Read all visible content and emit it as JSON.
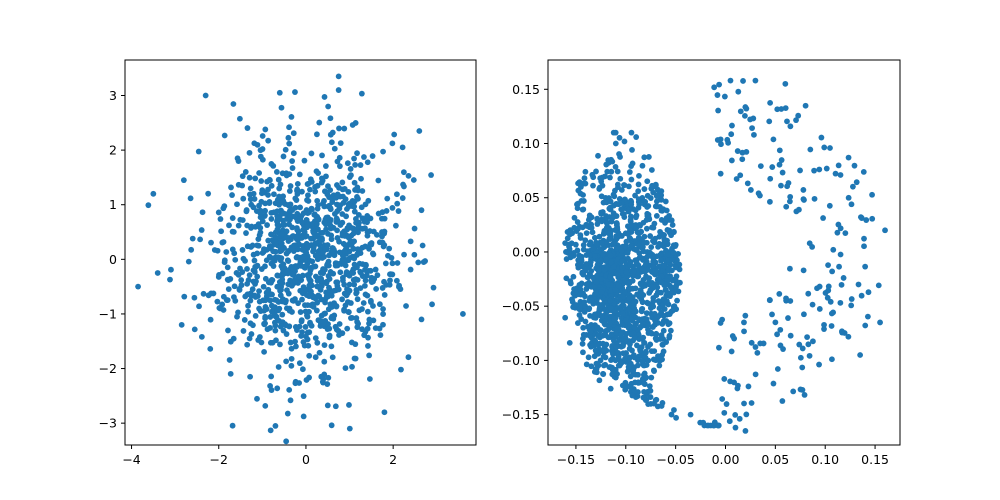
{
  "chart_data": [
    {
      "type": "scatter",
      "title": "",
      "xlabel": "",
      "ylabel": "",
      "xlim": [
        -4.15,
        3.9
      ],
      "ylim": [
        -3.4,
        3.65
      ],
      "xticks": [
        -4,
        -2,
        0,
        2
      ],
      "yticks": [
        -3,
        -2,
        -1,
        0,
        1,
        2,
        3
      ],
      "xtick_labels": [
        "−4",
        "−2",
        "0",
        "2"
      ],
      "ytick_labels": [
        "−3",
        "−2",
        "−1",
        "0",
        "1",
        "2",
        "3"
      ],
      "grid": false,
      "legend": "none",
      "color": "#1f77b4",
      "series": [
        {
          "distribution": "standard bivariate normal sample",
          "n_approx": 1200,
          "x_outliers": [
            -3.85,
            -3.5,
            -3.4,
            3.6
          ],
          "y_outliers": [
            -0.5,
            1.2,
            -0.25,
            -1.0
          ],
          "notable_points": [
            {
              "x": -2.3,
              "y": 3.0
            },
            {
              "x": -0.6,
              "y": 3.05
            },
            {
              "x": 0.75,
              "y": 3.35
            },
            {
              "x": 0.75,
              "y": 3.1
            },
            {
              "x": -0.7,
              "y": -3.05
            },
            {
              "x": 1.8,
              "y": -2.8
            },
            {
              "x": 2.6,
              "y": 2.35
            },
            {
              "x": 2.65,
              "y": 0.9
            },
            {
              "x": 2.7,
              "y": -0.05
            },
            {
              "x": 2.65,
              "y": -1.1
            },
            {
              "x": -2.85,
              "y": -1.2
            },
            {
              "x": -2.8,
              "y": 1.45
            }
          ]
        }
      ]
    },
    {
      "type": "scatter",
      "title": "",
      "xlabel": "",
      "ylabel": "",
      "xlim": [
        -0.178,
        0.175
      ],
      "ylim": [
        -0.178,
        0.177
      ],
      "xticks": [
        -0.15,
        -0.1,
        -0.05,
        0.0,
        0.05,
        0.1,
        0.15
      ],
      "yticks": [
        -0.15,
        -0.1,
        -0.05,
        0.0,
        0.05,
        0.1,
        0.15
      ],
      "xtick_labels": [
        "−0.15",
        "−0.10",
        "−0.05",
        "0.00",
        "0.05",
        "0.10",
        "0.15"
      ],
      "ytick_labels": [
        "−0.15",
        "−0.10",
        "−0.05",
        "0.00",
        "0.05",
        "0.10",
        "0.15"
      ],
      "grid": false,
      "legend": "none",
      "color": "#1f77b4",
      "series": [
        {
          "description": "dense crescent band on the left, sparse points filling the right half of a disk of radius ~0.16",
          "crescent_center": [
            -0.11,
            -0.03
          ],
          "disk_radius": 0.162,
          "notable_points": [
            {
              "x": 0.005,
              "y": 0.158
            },
            {
              "x": 0.03,
              "y": 0.158
            },
            {
              "x": 0.06,
              "y": 0.155
            },
            {
              "x": 0.16,
              "y": 0.02
            },
            {
              "x": 0.155,
              "y": -0.065
            },
            {
              "x": 0.135,
              "y": -0.095
            },
            {
              "x": 0.02,
              "y": -0.165
            },
            {
              "x": 0.01,
              "y": -0.162
            },
            {
              "x": -0.035,
              "y": -0.15
            },
            {
              "x": -0.16,
              "y": 0.0
            },
            {
              "x": -0.145,
              "y": 0.06
            },
            {
              "x": -0.11,
              "y": 0.1
            }
          ]
        }
      ]
    }
  ]
}
